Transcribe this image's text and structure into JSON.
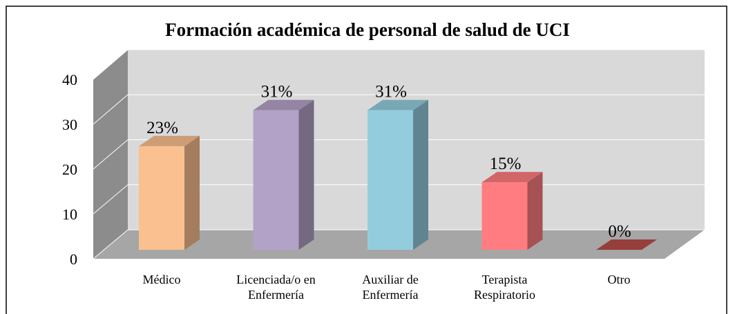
{
  "chart_data": {
    "type": "bar3d",
    "title": "Formación académica de personal de salud de UCI",
    "categories": [
      "Médico",
      "Licenciada/o en Enfermería",
      "Auxiliar de Enfermería",
      "Terapista Respiratorio",
      "Otro"
    ],
    "values": [
      23,
      31,
      31,
      15,
      0
    ],
    "value_labels": [
      "23%",
      "31%",
      "31%",
      "15%",
      "0%"
    ],
    "colors": [
      "#FAC090",
      "#B3A2C7",
      "#93CDDD",
      "#FF7C80",
      "#C0504D"
    ],
    "ylim": [
      0,
      40
    ],
    "yticks": [
      0,
      10,
      20,
      30,
      40
    ],
    "grid": true
  }
}
